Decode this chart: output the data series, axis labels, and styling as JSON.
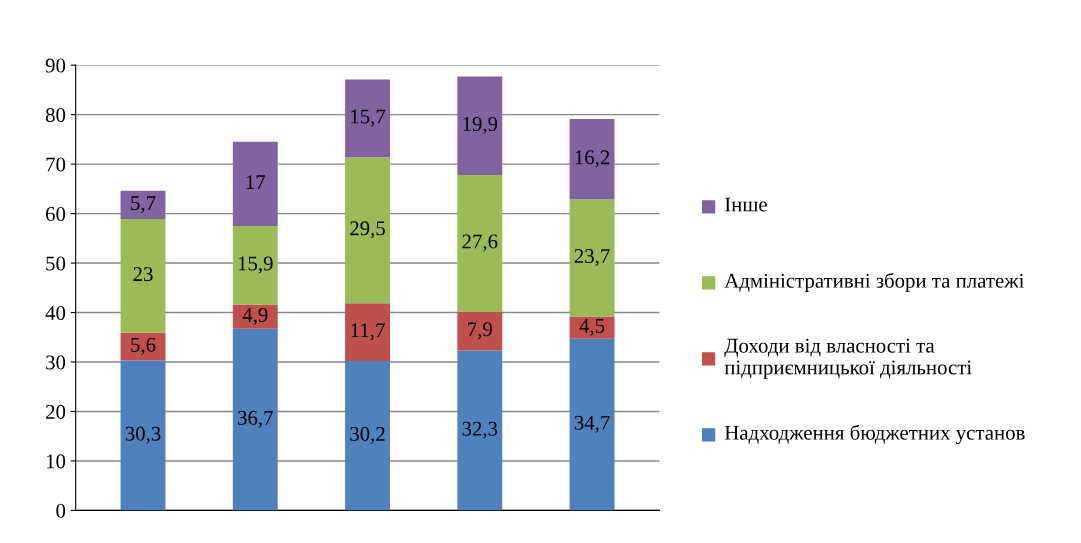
{
  "chart_data": {
    "type": "bar",
    "stacked": true,
    "categories": [
      null,
      null,
      null,
      null,
      null
    ],
    "ylim": [
      0,
      90
    ],
    "yticks": [
      0,
      10,
      20,
      30,
      40,
      50,
      60,
      70,
      80,
      90
    ],
    "grid": "y",
    "legend": "right",
    "series": [
      {
        "name": "Надходження бюджетних установ",
        "color": "#4f81bd",
        "values": [
          30.3,
          36.7,
          30.2,
          32.3,
          34.7
        ],
        "value_labels": [
          "30,3",
          "36,7",
          "30,2",
          "32,3",
          "34,7"
        ]
      },
      {
        "name": "Доходи від власності та підприємницької діяльності",
        "color": "#c0504d",
        "values": [
          5.6,
          4.9,
          11.7,
          7.9,
          4.5
        ],
        "value_labels": [
          "5,6",
          "4,9",
          "11,7",
          "7,9",
          "4,5"
        ]
      },
      {
        "name": "Адміністративні збори та платежі",
        "color": "#9bbb59",
        "values": [
          23,
          15.9,
          29.5,
          27.6,
          23.7
        ],
        "value_labels": [
          "23",
          "15,9",
          "29,5",
          "27,6",
          "23,7"
        ]
      },
      {
        "name": "Інше",
        "color": "#8064a2",
        "values": [
          5.7,
          17,
          15.7,
          19.9,
          16.2
        ],
        "value_labels": [
          "5,7",
          "17",
          "15,7",
          "19,9",
          "16,2"
        ]
      }
    ]
  }
}
